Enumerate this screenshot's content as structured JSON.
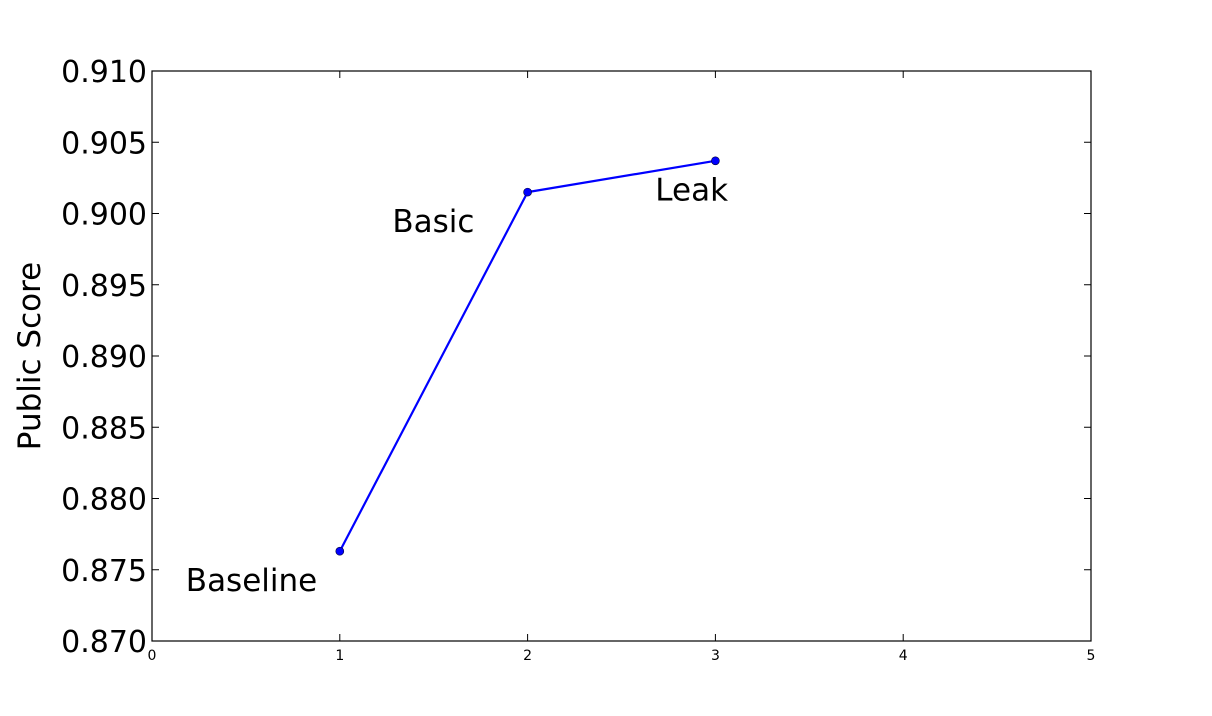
{
  "chart_data": {
    "type": "line",
    "title": "",
    "xlabel": "",
    "ylabel": "Public Score",
    "xlim": [
      0,
      5
    ],
    "ylim": [
      0.87,
      0.91
    ],
    "xticks": [
      "0",
      "1",
      "2",
      "3",
      "4",
      "5"
    ],
    "yticks": [
      "0.870",
      "0.875",
      "0.880",
      "0.885",
      "0.890",
      "0.895",
      "0.900",
      "0.905",
      "0.910"
    ],
    "grid": false,
    "legend": "none",
    "series": [
      {
        "color": "#0000ff",
        "marker": "circle",
        "points": [
          {
            "x": 1,
            "y": 0.8763
          },
          {
            "x": 2,
            "y": 0.9015
          },
          {
            "x": 3,
            "y": 0.9037
          }
        ]
      }
    ],
    "annotations": [
      {
        "text": "Baseline",
        "x": 0.18,
        "y": 0.8735
      },
      {
        "text": "Basic",
        "x": 1.28,
        "y": 0.8987
      },
      {
        "text": "Leak",
        "x": 2.68,
        "y": 0.9009
      }
    ]
  }
}
